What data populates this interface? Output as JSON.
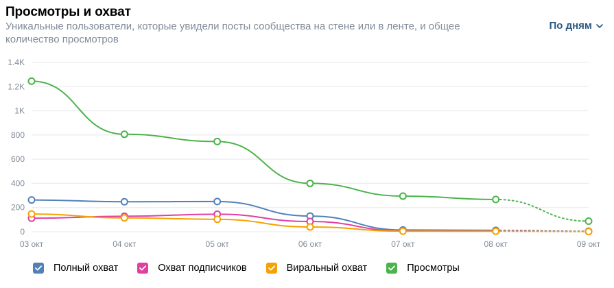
{
  "header": {
    "title": "Просмотры и охват",
    "subtitle": "Уникальные пользователи, которые увидели посты сообщества на стене или в ленте, и общее количество просмотров",
    "period_label": "По дням"
  },
  "colors": {
    "reach": "#5181b8",
    "subscribers": "#e040a0",
    "viral": "#f5a200",
    "views": "#4bb34b",
    "axis_text": "#818c99",
    "grid": "#e7e8ec"
  },
  "chart_data": {
    "type": "line",
    "categories": [
      "03 окт",
      "04 окт",
      "05 окт",
      "06 окт",
      "07 окт",
      "08 окт",
      "09 окт"
    ],
    "y_ticks": [
      "0",
      "200",
      "400",
      "600",
      "800",
      "1K",
      "1.2K",
      "1.4K"
    ],
    "ylim": [
      0,
      1400
    ],
    "grid": true,
    "legend_position": "bottom-left",
    "series": [
      {
        "name": "Полный охват",
        "color": "#5181b8",
        "values": [
          263,
          248,
          250,
          130,
          15,
          12,
          5
        ]
      },
      {
        "name": "Охват подписчиков",
        "color": "#e040a0",
        "values": [
          112,
          128,
          145,
          85,
          8,
          6,
          2
        ]
      },
      {
        "name": "Виральный охват",
        "color": "#f5a200",
        "values": [
          147,
          115,
          103,
          40,
          5,
          4,
          2
        ]
      },
      {
        "name": "Просмотры",
        "color": "#4bb34b",
        "values": [
          1245,
          806,
          746,
          400,
          295,
          267,
          88
        ]
      }
    ],
    "dashed_last_segment": true
  }
}
